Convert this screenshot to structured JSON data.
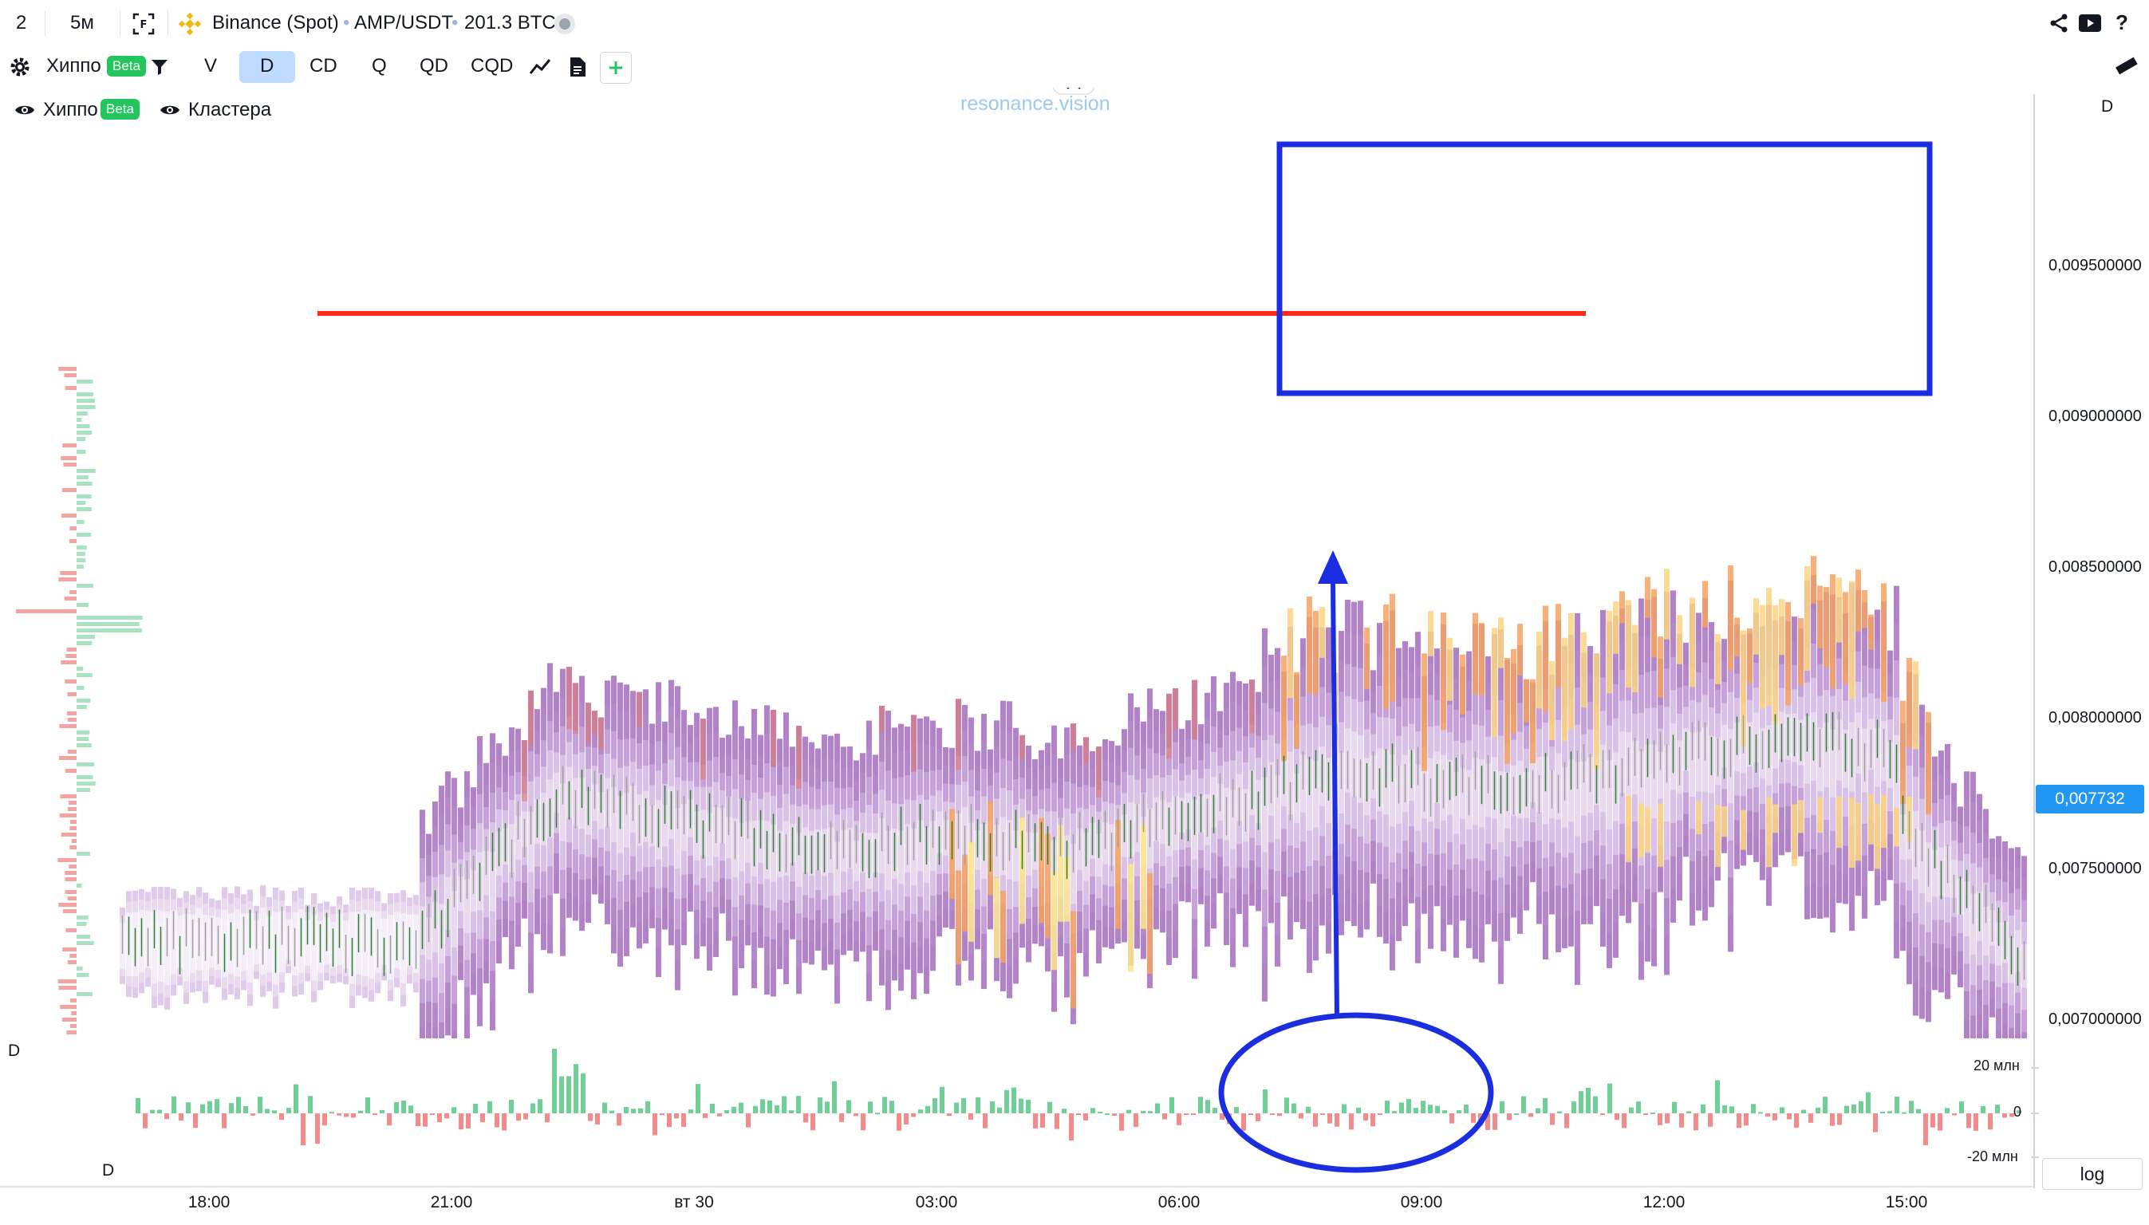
{
  "topbar": {
    "count": "2",
    "interval": "5м",
    "exchange": "Binance (Spot)",
    "symbol": "AMP/USDT",
    "volume": "201.3 BTC"
  },
  "toolbar": {
    "indicator_label": "Хиппо",
    "beta_badge": "Beta",
    "tabs": [
      "V",
      "D",
      "CD",
      "Q",
      "QD",
      "CQD"
    ],
    "active_tab": "D"
  },
  "legend": {
    "hippo_label": "Хиппо",
    "hippo_badge": "Beta",
    "clusters_label": "Кластера"
  },
  "watermark": "resonance.vision",
  "pane_labels": {
    "main_right": "D",
    "sub_left": "D",
    "sub_bottom": "D"
  },
  "price_axis": {
    "ticks": [
      "0,009500000",
      "0,009000000",
      "0,008500000",
      "0,008000000",
      "0,007500000",
      "0,007000000"
    ],
    "current_price": "0,007732"
  },
  "delta_axis": {
    "ticks": [
      "20 млн",
      "0",
      "-20 млн"
    ]
  },
  "time_axis": {
    "ticks": [
      "18:00",
      "21:00",
      "вт 30",
      "03:00",
      "06:00",
      "09:00",
      "12:00",
      "15:00"
    ]
  },
  "log_button": "log",
  "colors": {
    "accent_blue": "#2196f3",
    "heat_purple": "#b07cc3",
    "heat_orange": "#f4a261",
    "heat_yellow": "#fde68a",
    "delta_up": "#4ade80",
    "delta_down": "#f87171",
    "annotation_red": "#ff2a1a",
    "annotation_blue": "#1a2ee0"
  },
  "chart_data": {
    "type": "heatmap",
    "series": [
      {
        "name": "Хиппо",
        "kind": "liquidity heat columns"
      },
      {
        "name": "Кластера",
        "kind": "cluster candles"
      }
    ],
    "price_range": [
      0.0069,
      0.01
    ],
    "x": [
      "18:00",
      "21:00",
      "вт 30",
      "03:00",
      "06:00",
      "09:00",
      "12:00",
      "15:00"
    ],
    "delta_range_mln": [
      -25,
      25
    ],
    "annotations": [
      {
        "type": "horizontal-line",
        "color": "red",
        "price": 0.00935
      },
      {
        "type": "rectangle",
        "color": "blue",
        "time_from": "07:20",
        "time_to": "15:00",
        "price_from": 0.00908,
        "price_to": 0.0099
      },
      {
        "type": "arrow",
        "color": "blue",
        "time": "07:50",
        "price_from": 0.007,
        "price_to": 0.00851
      },
      {
        "type": "ellipse",
        "color": "blue",
        "time_from": "06:15",
        "time_to": "10:15",
        "delta_from": -20,
        "delta_to": 25
      }
    ]
  }
}
